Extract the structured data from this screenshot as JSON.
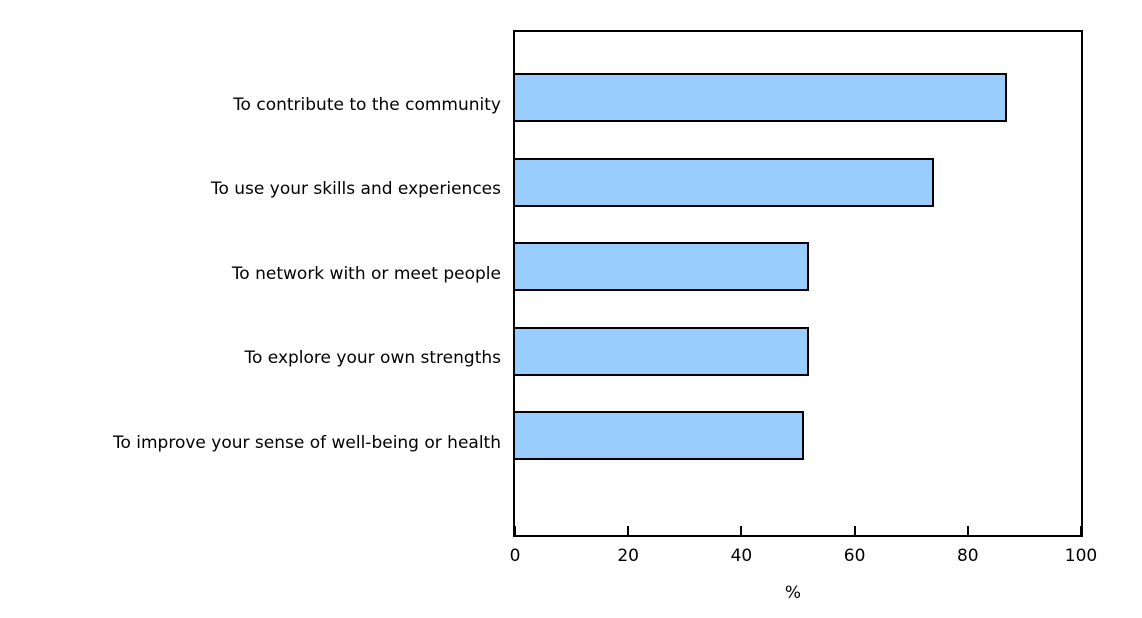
{
  "chart_data": {
    "type": "bar",
    "orientation": "horizontal",
    "categories": [
      "To contribute to the community",
      "To use your skills and experiences",
      "To network with or meet people",
      "To explore your own strengths",
      "To improve your sense of well-being or health"
    ],
    "values": [
      87,
      74,
      52,
      52,
      51
    ],
    "xlabel": "%",
    "xlim": [
      0,
      100
    ],
    "xticks": [
      0,
      20,
      40,
      60,
      80,
      100
    ],
    "grid": "off",
    "bar_fill_color": "#99CCFF",
    "bar_border_color": "#000000",
    "axis_color": "#000000",
    "text_color": "#000000"
  }
}
